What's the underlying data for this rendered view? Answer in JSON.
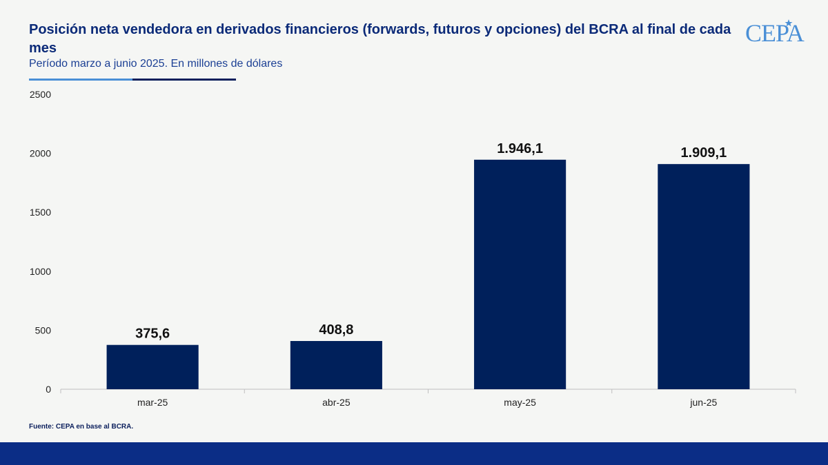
{
  "header": {
    "title": "Posición neta vendedora en derivados financieros (forwards, futuros y opciones) del BCRA al final de cada mes",
    "subtitle": "Período marzo a junio 2025. En millones de dólares",
    "logo": "CEPA"
  },
  "footer": {
    "source": "Fuente: CEPA en base al BCRA."
  },
  "colors": {
    "bar": "#00205b",
    "title": "#0b2a78",
    "accent": "#4a8fd6",
    "footer_bar": "#0b2d86"
  },
  "chart_data": {
    "type": "bar",
    "title": "Posición neta vendedora en derivados financieros (forwards, futuros y opciones) del BCRA al final de cada mes",
    "subtitle": "Período marzo a junio 2025. En millones de dólares",
    "categories": [
      "mar-25",
      "abr-25",
      "may-25",
      "jun-25"
    ],
    "values": [
      375.6,
      408.8,
      1946.1,
      1909.1
    ],
    "data_labels": [
      "375,6",
      "408,8",
      "1.946,1",
      "1.909,1"
    ],
    "ylim": [
      0,
      2500
    ],
    "yticks": [
      0,
      500,
      1000,
      1500,
      2000,
      2500
    ],
    "xlabel": "",
    "ylabel": "",
    "grid": false,
    "legend": "none"
  }
}
